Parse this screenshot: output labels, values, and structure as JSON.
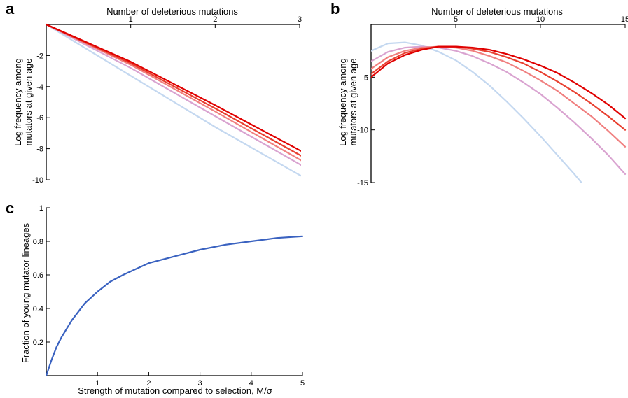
{
  "chart_data": [
    {
      "panel": "a",
      "type": "line",
      "xlabel": "Number of deleterious mutations",
      "ylabel": [
        "Log frequency among",
        "mutators at given age"
      ],
      "xlim": [
        0,
        3
      ],
      "ylim": [
        -10,
        0
      ],
      "x_axis_position": "top",
      "xticks": [
        1,
        2,
        3
      ],
      "yticks": [
        -2,
        -4,
        -6,
        -8,
        -10
      ],
      "grid": false,
      "legend": "none",
      "series": [
        {
          "color": "#c4d8f0",
          "x": [
            0,
            1,
            2,
            3,
            3.3
          ],
          "y": [
            0,
            -3.3,
            -6.6,
            -9.7,
            -10.4
          ]
        },
        {
          "color": "#d9a3d0",
          "x": [
            0,
            1,
            2,
            3,
            3.3
          ],
          "y": [
            0,
            -2.8,
            -5.9,
            -9.0,
            -10.0
          ]
        },
        {
          "color": "#f08080",
          "x": [
            0,
            1,
            2,
            3,
            3.3
          ],
          "y": [
            0,
            -2.6,
            -5.6,
            -8.7,
            -9.6
          ]
        },
        {
          "color": "#e84030",
          "x": [
            0,
            1,
            2,
            3,
            3.3
          ],
          "y": [
            0,
            -2.5,
            -5.4,
            -8.4,
            -9.3
          ]
        },
        {
          "color": "#e00000",
          "x": [
            0,
            1,
            2,
            3,
            3.3
          ],
          "y": [
            0,
            -2.4,
            -5.2,
            -8.1,
            -8.9
          ]
        }
      ]
    },
    {
      "panel": "b",
      "type": "line",
      "xlabel": "Number of deleterious mutations",
      "ylabel": [
        "Log frequency among",
        "mutators at given age"
      ],
      "xlim": [
        0,
        15
      ],
      "ylim": [
        -15,
        0
      ],
      "x_axis_position": "top",
      "xticks": [
        5,
        10,
        15
      ],
      "yticks": [
        -5,
        -10,
        -15
      ],
      "grid": false,
      "legend": "none",
      "series": [
        {
          "color": "#c4d8f0",
          "x": [
            0,
            1,
            2,
            3,
            4,
            5,
            6,
            7,
            8,
            9,
            10,
            11,
            12,
            13
          ],
          "y": [
            -2.5,
            -1.8,
            -1.7,
            -2.0,
            -2.6,
            -3.4,
            -4.5,
            -5.8,
            -7.3,
            -8.9,
            -10.6,
            -12.4,
            -14.2,
            -16.1
          ]
        },
        {
          "color": "#d9a3d0",
          "x": [
            0,
            1,
            2,
            3,
            4,
            5,
            6,
            7,
            8,
            9,
            10,
            11,
            12,
            13,
            14,
            15
          ],
          "y": [
            -3.5,
            -2.6,
            -2.2,
            -2.1,
            -2.2,
            -2.5,
            -3.0,
            -3.7,
            -4.5,
            -5.5,
            -6.6,
            -7.9,
            -9.3,
            -10.8,
            -12.4,
            -14.2
          ]
        },
        {
          "color": "#f08080",
          "x": [
            0,
            1,
            2,
            3,
            4,
            5,
            6,
            7,
            8,
            9,
            10,
            11,
            12,
            13,
            14,
            15
          ],
          "y": [
            -4.2,
            -3.1,
            -2.5,
            -2.2,
            -2.1,
            -2.2,
            -2.5,
            -3.0,
            -3.6,
            -4.4,
            -5.3,
            -6.3,
            -7.5,
            -8.7,
            -10.1,
            -11.6
          ]
        },
        {
          "color": "#e84030",
          "x": [
            0,
            1,
            2,
            3,
            4,
            5,
            6,
            7,
            8,
            9,
            10,
            11,
            12,
            13,
            14,
            15
          ],
          "y": [
            -4.7,
            -3.5,
            -2.7,
            -2.3,
            -2.1,
            -2.1,
            -2.3,
            -2.6,
            -3.1,
            -3.7,
            -4.5,
            -5.4,
            -6.4,
            -7.5,
            -8.7,
            -10.0
          ]
        },
        {
          "color": "#e00000",
          "x": [
            0,
            1,
            2,
            3,
            4,
            5,
            6,
            7,
            8,
            9,
            10,
            11,
            12,
            13,
            14,
            15
          ],
          "y": [
            -5.0,
            -3.7,
            -2.9,
            -2.4,
            -2.1,
            -2.1,
            -2.2,
            -2.4,
            -2.8,
            -3.3,
            -3.9,
            -4.6,
            -5.5,
            -6.5,
            -7.6,
            -8.9
          ]
        }
      ]
    },
    {
      "panel": "c",
      "type": "line",
      "xlabel": "Strength of mutation compared to selection, M/σ",
      "ylabel": [
        "Fraction of young mutator lineages"
      ],
      "xlim": [
        0,
        5
      ],
      "ylim": [
        0,
        1
      ],
      "x_axis_position": "bottom",
      "xticks": [
        1,
        2,
        3,
        4,
        5
      ],
      "yticks": [
        0.2,
        0.4,
        0.6,
        0.8,
        1
      ],
      "grid": false,
      "legend": "none",
      "series": [
        {
          "color": "#3a62c0",
          "x": [
            0,
            0.1,
            0.2,
            0.3,
            0.5,
            0.75,
            1,
            1.25,
            1.5,
            2,
            2.5,
            3,
            3.5,
            4,
            4.5,
            5
          ],
          "y": [
            0,
            0.09,
            0.17,
            0.23,
            0.33,
            0.43,
            0.5,
            0.56,
            0.6,
            0.67,
            0.71,
            0.75,
            0.78,
            0.8,
            0.82,
            0.83
          ]
        }
      ]
    }
  ]
}
